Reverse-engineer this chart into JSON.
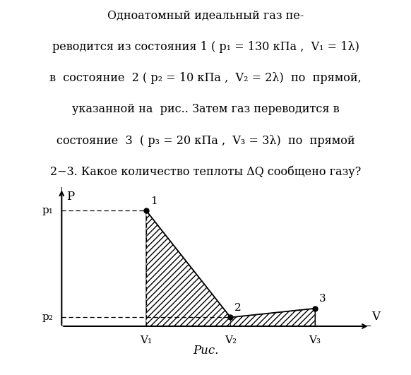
{
  "title_lines": [
    "Одноатомный идеальный газ пе-",
    "реводится из состояния 1 ( p₁ = 130 кПа ,  V₁ = 1λ)",
    "в  состояние  2 ( p₂ = 10 кПа ,  V₂ = 2λ)  по  прямой,",
    "указанной на  рис.. Затем газ переводится в",
    "состояние  3  ( p₃ = 20 кПа ,  V₃ = 3λ)  по  прямой",
    "2−3. Какое количество теплоты ΔQ сообщено газу?"
  ],
  "p1_label": "p₁",
  "p2_label": "p₂",
  "V1_label": "V₁",
  "V2_label": "V₂",
  "V3_label": "V₃",
  "xlabel": "V",
  "ylabel": "P",
  "caption": "Рис.",
  "bg_color": "white",
  "p1_val": 130,
  "p2_val": 10,
  "p3_val": 20,
  "V1_val": 1,
  "V2_val": 2,
  "V3_val": 3,
  "xlim": [
    0,
    3.7
  ],
  "ylim": [
    0,
    160
  ]
}
